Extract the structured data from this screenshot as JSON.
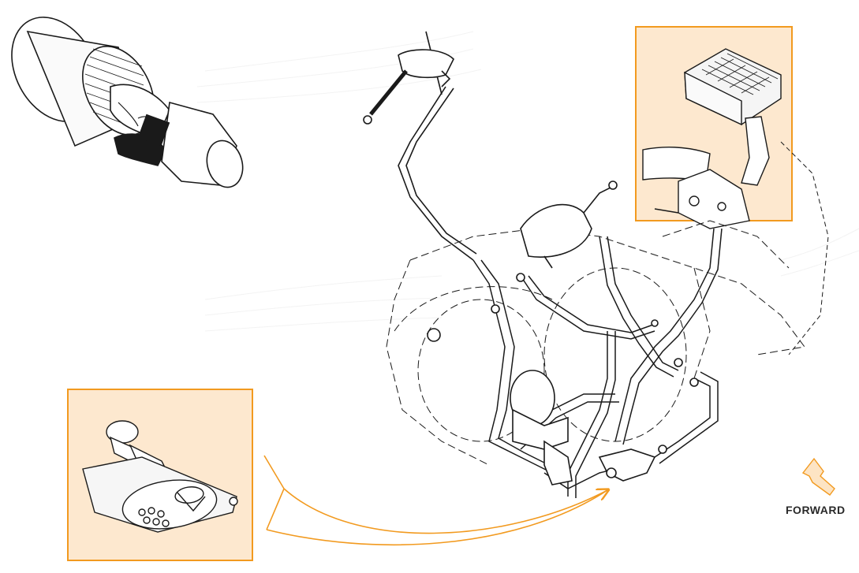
{
  "diagram": {
    "colors": {
      "background": "#ffffff",
      "ink": "#1a1a1a",
      "accent": "#f29a1f",
      "panel_fill": "#fde8cf",
      "forward_arrow_fill": "#fde4c4",
      "forward_text": "#2a2a2a"
    },
    "forward_arrow": {
      "label": "FORWARD",
      "icon": "forward-arrow-icon"
    },
    "callouts": [
      {
        "id": "top-right-callout",
        "icon": "charcoal-canister-detail"
      },
      {
        "id": "bottom-left-callout",
        "icon": "fuel-tank-detail"
      }
    ]
  }
}
